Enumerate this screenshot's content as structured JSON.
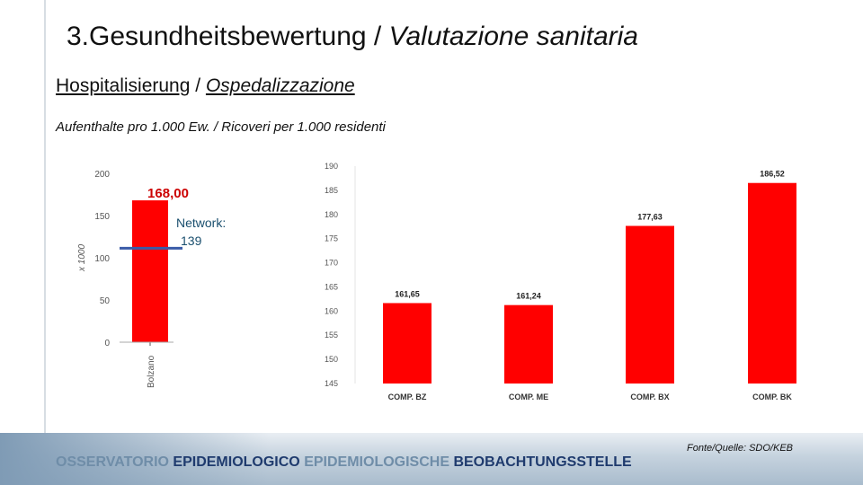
{
  "slide": {
    "title_main": "3.Gesundheitsbewertung / ",
    "title_italic": "Valutazione sanitaria",
    "subtitle_de": "Hospitalisierung",
    "subtitle_sep": " / ",
    "subtitle_it": "Ospedalizzazione",
    "caption": "Aufenthalte pro 1.000 Ew. / Ricoveri per 1.000 residenti",
    "source": "Fonte/Quelle: SDO/KEB",
    "org_part1": "OSSERVATORIO ",
    "org_part2": "EPIDEMIOLOGICO ",
    "org_part3": "EPIDEMIOLOGISCHE ",
    "org_part4": "BEOBACHTUNGSSTELLE"
  },
  "colors": {
    "bar": "#ff0000",
    "network_line": "#3a5ba8",
    "value_label_red": "#cc0000",
    "network_label": "#1a4f6e"
  },
  "chart_data": [
    {
      "type": "bar",
      "categories": [
        "Bolzano"
      ],
      "values": [
        168.0
      ],
      "value_labels": [
        "168,00"
      ],
      "ylim": [
        0,
        200
      ],
      "yticks": [
        0,
        50,
        100,
        150,
        200
      ],
      "ylabel": "x 1000",
      "reference_line": {
        "label_line1": "Network:",
        "label_line2": "139",
        "value": 139
      },
      "grid": false
    },
    {
      "type": "bar",
      "categories": [
        "COMP. BZ",
        "COMP. ME",
        "COMP. BX",
        "COMP. BK"
      ],
      "values": [
        161.65,
        161.24,
        177.63,
        186.52
      ],
      "value_labels": [
        "161,65",
        "161,24",
        "177,63",
        "186,52"
      ],
      "ylim": [
        145,
        190
      ],
      "yticks": [
        145,
        150,
        155,
        160,
        165,
        170,
        175,
        180,
        185,
        190
      ],
      "grid": false
    }
  ]
}
